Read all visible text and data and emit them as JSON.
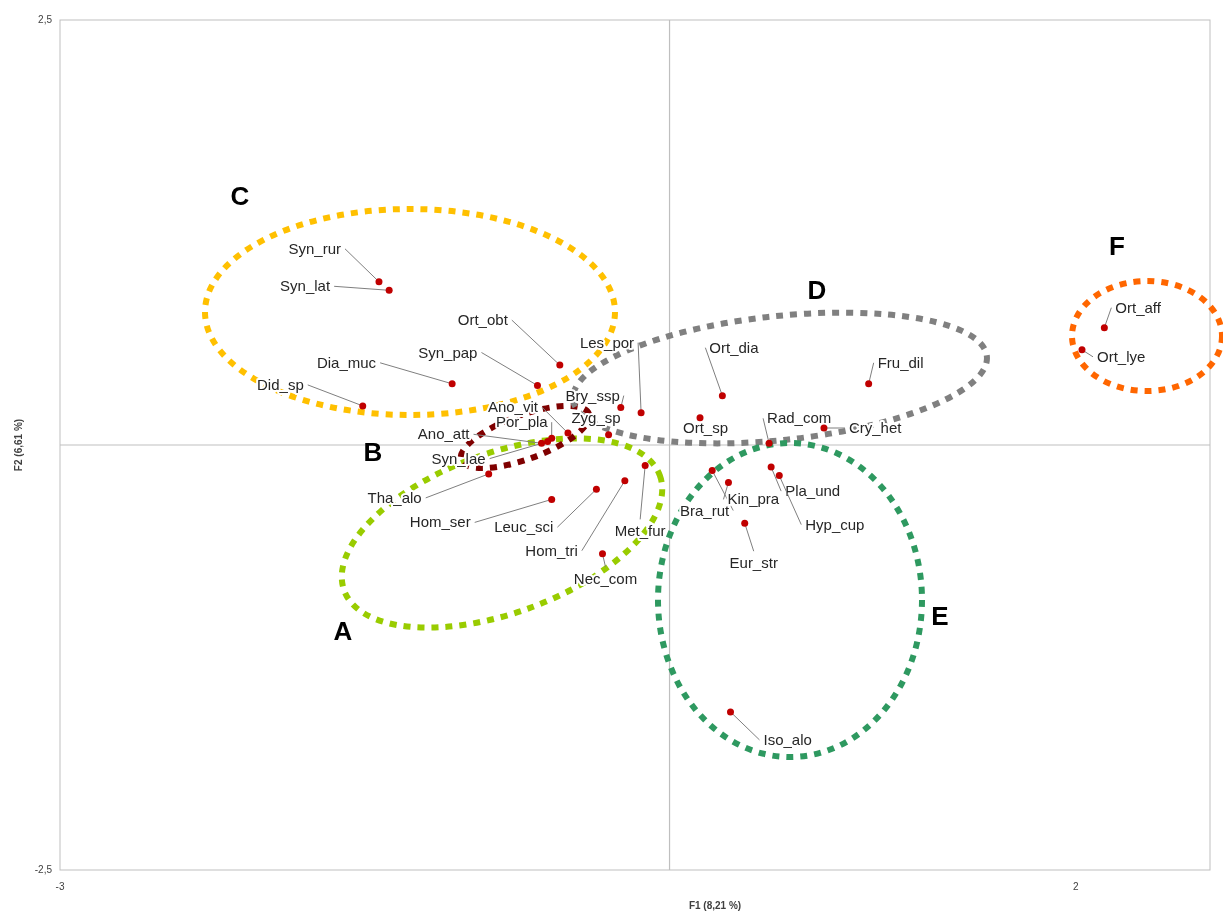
{
  "chart_data": {
    "type": "scatter",
    "xlabel": "F1 (8,21 %)",
    "ylabel": "F2 (6,61 %)",
    "xlim": [
      -3,
      2.66
    ],
    "ylim": [
      -2.5,
      2.5
    ],
    "xticks": [
      -3,
      2
    ],
    "yticks": [
      {
        "value": -2.5,
        "label": "-2,5"
      },
      {
        "value": 2.5,
        "label": "2,5"
      }
    ],
    "grid": false,
    "marker": "circle",
    "series": [
      {
        "color": "#c00000",
        "x": [
          -1.43,
          -1.38,
          -0.54,
          -0.65,
          -1.07,
          -1.51,
          -0.14,
          -0.24,
          -0.5,
          -0.3,
          -0.58,
          -0.63,
          -0.6,
          -0.89,
          -0.58,
          -0.36,
          -0.22,
          -0.12,
          -0.33,
          0.26,
          0.15,
          0.98,
          0.76,
          0.49,
          0.5,
          0.54,
          0.21,
          0.29,
          0.37,
          0.3,
          2.14,
          2.03
        ],
        "values": [
          0.96,
          0.91,
          0.47,
          0.35,
          0.36,
          0.23,
          0.19,
          0.22,
          0.07,
          0.06,
          0.04,
          0.01,
          0.02,
          -0.17,
          -0.32,
          -0.26,
          -0.21,
          -0.12,
          -0.64,
          0.29,
          0.16,
          0.36,
          0.1,
          0.01,
          -0.13,
          -0.18,
          -0.15,
          -0.22,
          -0.46,
          -1.57,
          0.69,
          0.56
        ]
      }
    ],
    "annotations": [
      {
        "text": "Syn_rur",
        "x": -1.43,
        "y": 0.96
      },
      {
        "text": "Syn_lat",
        "x": -1.38,
        "y": 0.91
      },
      {
        "text": "Ort_obt",
        "x": -0.54,
        "y": 0.47
      },
      {
        "text": "Syn_pap",
        "x": -0.65,
        "y": 0.35
      },
      {
        "text": "Dia_muc",
        "x": -1.07,
        "y": 0.36
      },
      {
        "text": "Did_sp",
        "x": -1.51,
        "y": 0.23
      },
      {
        "text": "Les_por",
        "x": -0.14,
        "y": 0.19
      },
      {
        "text": "Bry_ssp",
        "x": -0.24,
        "y": 0.22
      },
      {
        "text": "Ano_vit",
        "x": -0.5,
        "y": 0.07
      },
      {
        "text": "Zyg_sp",
        "x": -0.3,
        "y": 0.06
      },
      {
        "text": "Por_pla",
        "x": -0.58,
        "y": 0.04
      },
      {
        "text": "Ano_att",
        "x": -0.63,
        "y": 0.01
      },
      {
        "text": "Syn_lae",
        "x": -0.6,
        "y": 0.02
      },
      {
        "text": "Tha_alo",
        "x": -0.89,
        "y": -0.17
      },
      {
        "text": "Hom_ser",
        "x": -0.58,
        "y": -0.32
      },
      {
        "text": "Leuc_sci",
        "x": -0.36,
        "y": -0.26
      },
      {
        "text": "Hom_tri",
        "x": -0.22,
        "y": -0.21
      },
      {
        "text": "Met_fur",
        "x": -0.12,
        "y": -0.12
      },
      {
        "text": "Nec_com",
        "x": -0.33,
        "y": -0.64
      },
      {
        "text": "Ort_dia",
        "x": 0.26,
        "y": 0.29
      },
      {
        "text": "Ort_sp",
        "x": 0.15,
        "y": 0.16
      },
      {
        "text": "Fru_dil",
        "x": 0.98,
        "y": 0.36
      },
      {
        "text": "Cry_het",
        "x": 0.76,
        "y": 0.1
      },
      {
        "text": "Rad_com",
        "x": 0.49,
        "y": 0.01
      },
      {
        "text": "Pla_und",
        "x": 0.5,
        "y": -0.13
      },
      {
        "text": "Hyp_cup",
        "x": 0.54,
        "y": -0.18
      },
      {
        "text": "Bra_rut",
        "x": 0.21,
        "y": -0.15
      },
      {
        "text": "Kin_pra",
        "x": 0.29,
        "y": -0.22
      },
      {
        "text": "Eur_str",
        "x": 0.37,
        "y": -0.46
      },
      {
        "text": "Iso_alo",
        "x": 0.3,
        "y": -1.57
      },
      {
        "text": "Ort_aff",
        "x": 2.14,
        "y": 0.69
      },
      {
        "text": "Ort_lye",
        "x": 2.03,
        "y": 0.56
      },
      "A",
      "B",
      "C",
      "D",
      "E",
      "F"
    ]
  }
}
